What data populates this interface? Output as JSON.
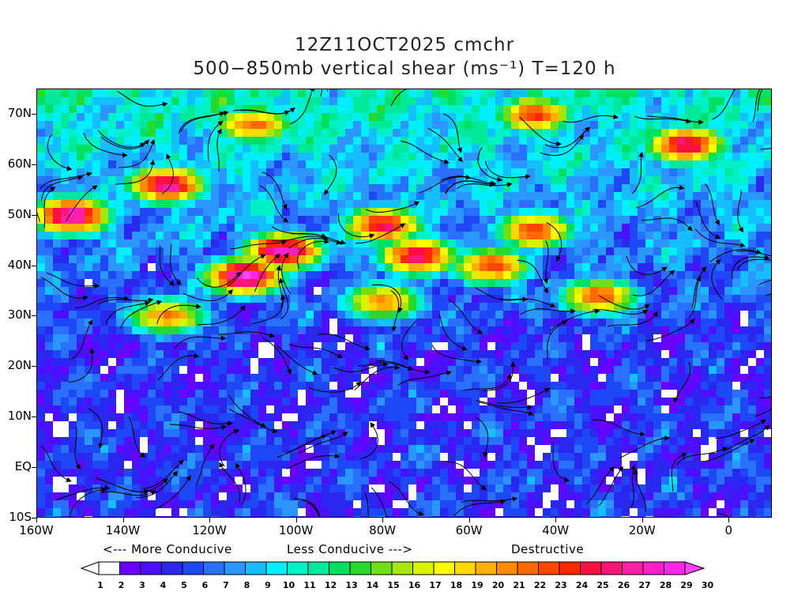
{
  "title": {
    "line1": "12Z11OCT2025 cmchr",
    "line2": "500−850mb vertical shear (ms⁻¹) T=120 h"
  },
  "map": {
    "lon_range": [
      -160,
      10
    ],
    "lat_range": [
      -10,
      75
    ],
    "y_ticks": [
      {
        "lat": 70,
        "label": "70N"
      },
      {
        "lat": 60,
        "label": "60N"
      },
      {
        "lat": 50,
        "label": "50N"
      },
      {
        "lat": 40,
        "label": "40N"
      },
      {
        "lat": 30,
        "label": "30N"
      },
      {
        "lat": 20,
        "label": "20N"
      },
      {
        "lat": 10,
        "label": "10N"
      },
      {
        "lat": 0,
        "label": "EQ"
      },
      {
        "lat": -10,
        "label": "10S"
      }
    ],
    "x_ticks": [
      {
        "lon": -160,
        "label": "160W"
      },
      {
        "lon": -140,
        "label": "140W"
      },
      {
        "lon": -120,
        "label": "120W"
      },
      {
        "lon": -100,
        "label": "100W"
      },
      {
        "lon": -80,
        "label": "80W"
      },
      {
        "lon": -60,
        "label": "60W"
      },
      {
        "lon": -40,
        "label": "40W"
      },
      {
        "lon": -20,
        "label": "20W"
      },
      {
        "lon": 0,
        "label": "0"
      }
    ],
    "shear_maxima": [
      {
        "lon": -152,
        "lat": 50,
        "value": 27
      },
      {
        "lon": -130,
        "lat": 56,
        "value": 26
      },
      {
        "lon": -112,
        "lat": 38,
        "value": 28
      },
      {
        "lon": -103,
        "lat": 43,
        "value": 27
      },
      {
        "lon": -80,
        "lat": 48,
        "value": 24
      },
      {
        "lon": -72,
        "lat": 42,
        "value": 25
      },
      {
        "lon": -55,
        "lat": 40,
        "value": 22
      },
      {
        "lon": -45,
        "lat": 47,
        "value": 22
      },
      {
        "lon": -30,
        "lat": 34,
        "value": 21
      },
      {
        "lon": -45,
        "lat": 70,
        "value": 22
      },
      {
        "lon": -10,
        "lat": 64,
        "value": 25
      },
      {
        "lon": -110,
        "lat": 68,
        "value": 21
      },
      {
        "lon": -130,
        "lat": 30,
        "value": 20
      },
      {
        "lon": -80,
        "lat": 33,
        "value": 20
      }
    ]
  },
  "legend": {
    "more_conducive": "<--- More Conducive",
    "less_conducive": "Less Conducive --->",
    "destructive": "Destructive",
    "levels": [
      "1",
      "2",
      "3",
      "4",
      "5",
      "6",
      "7",
      "8",
      "9",
      "10",
      "11",
      "12",
      "13",
      "14",
      "15",
      "16",
      "17",
      "18",
      "19",
      "20",
      "21",
      "22",
      "23",
      "24",
      "25",
      "26",
      "27",
      "28",
      "29",
      "30"
    ],
    "colors": [
      "#ffffff",
      "#6a00ff",
      "#4a10ff",
      "#2a28f0",
      "#1e48f5",
      "#2a70ff",
      "#2c96ff",
      "#14bfff",
      "#00eeff",
      "#00f0c8",
      "#00e89a",
      "#00e060",
      "#28d82a",
      "#6ee018",
      "#a8e60a",
      "#d8f200",
      "#fcfc00",
      "#ffd800",
      "#ffb000",
      "#ff8c00",
      "#ff6a00",
      "#ff4600",
      "#ff2800",
      "#f81040",
      "#ff1478",
      "#ff20a8",
      "#ff20c8",
      "#ff28e8",
      "#ff40ff"
    ]
  }
}
